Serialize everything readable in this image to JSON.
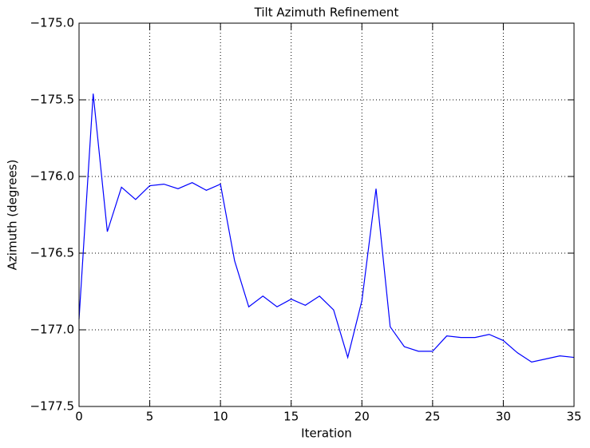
{
  "chart_data": {
    "type": "line",
    "title": "Tilt Azimuth Refinement",
    "x_label": "Iteration",
    "y_label": "Azimuth (degrees)",
    "x": [
      0,
      1,
      2,
      3,
      4,
      5,
      6,
      7,
      8,
      9,
      10,
      11,
      12,
      13,
      14,
      15,
      16,
      17,
      18,
      19,
      20,
      21,
      22,
      23,
      24,
      25,
      26,
      27,
      28,
      29,
      30,
      31,
      32,
      33,
      34,
      35
    ],
    "series": [
      {
        "color": "#0000ff",
        "values": [
          -176.93,
          -175.46,
          -176.36,
          -176.07,
          -176.15,
          -176.06,
          -176.05,
          -176.08,
          -176.04,
          -176.09,
          -176.05,
          -176.55,
          -176.85,
          -176.78,
          -176.85,
          -176.8,
          -176.84,
          -176.78,
          -176.87,
          -177.18,
          -176.81,
          -176.08,
          -176.98,
          -177.11,
          -177.14,
          -177.14,
          -177.04,
          -177.05,
          -177.05,
          -177.03,
          -177.07,
          -177.15,
          -177.21,
          -177.19,
          -177.17,
          -177.18
        ]
      }
    ],
    "xlim": [
      0,
      35
    ],
    "xticks": [
      0,
      5,
      10,
      15,
      20,
      25,
      30,
      35
    ],
    "ylim": [
      -177.5,
      -175.0
    ],
    "yticks": [
      {
        "value": -175.0,
        "label": "−175.0"
      },
      {
        "value": -175.5,
        "label": "−175.5"
      },
      {
        "value": -176.0,
        "label": "−176.0"
      },
      {
        "value": -176.5,
        "label": "−176.5"
      },
      {
        "value": -177.0,
        "label": "−177.0"
      },
      {
        "value": -177.5,
        "label": "−177.5"
      }
    ],
    "grid": true
  }
}
